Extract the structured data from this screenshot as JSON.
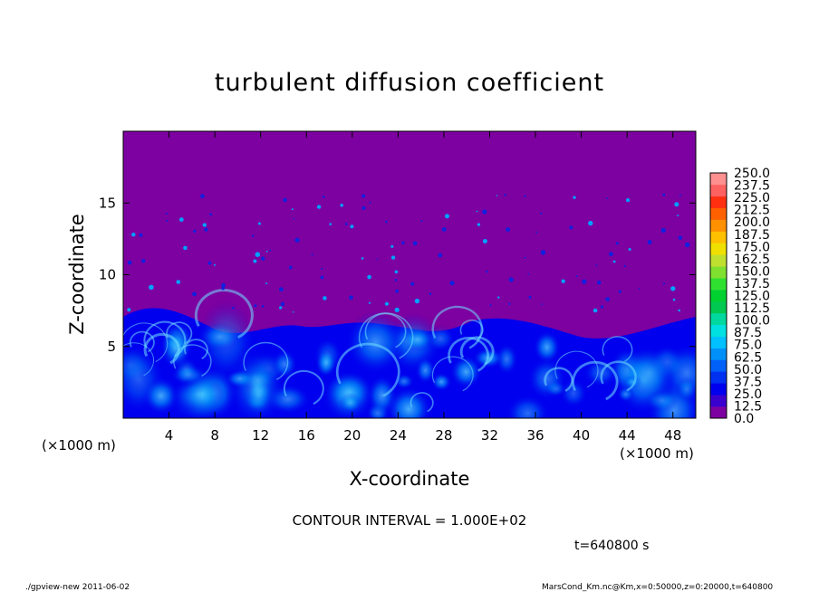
{
  "chart_data": {
    "type": "heatmap",
    "title": "turbulent diffusion coefficient",
    "xlabel": "X-coordinate",
    "ylabel": "Z-coordinate",
    "x_unit_label": "(×1000 m)",
    "z_unit_label": "(×1000 m)",
    "xlim": [
      0,
      50
    ],
    "ylim": [
      0,
      20
    ],
    "x_ticks": [
      "4",
      "8",
      "12",
      "16",
      "20",
      "24",
      "28",
      "32",
      "36",
      "40",
      "44",
      "48"
    ],
    "x_tick_values": [
      4,
      8,
      12,
      16,
      20,
      24,
      28,
      32,
      36,
      40,
      44,
      48
    ],
    "y_ticks": [
      "5",
      "10",
      "15"
    ],
    "y_tick_values": [
      5,
      10,
      15
    ],
    "colorbar": {
      "levels": [
        "0.0",
        "12.5",
        "25.0",
        "37.5",
        "50.0",
        "62.5",
        "75.0",
        "87.5",
        "100.0",
        "112.5",
        "125.0",
        "137.5",
        "150.0",
        "162.5",
        "175.0",
        "187.5",
        "200.0",
        "212.5",
        "225.0",
        "237.5",
        "250.0"
      ],
      "colors": [
        "#7d00a0",
        "#3a00d0",
        "#0000ee",
        "#0030f0",
        "#0060f8",
        "#0090f8",
        "#00c0ff",
        "#00e0e0",
        "#00d8a0",
        "#00c850",
        "#00d030",
        "#30e030",
        "#80e030",
        "#c0e030",
        "#f0e000",
        "#ffc000",
        "#ff9000",
        "#ff6000",
        "#ff3010",
        "#ff6060",
        "#ff9090"
      ]
    },
    "contour_interval": "CONTOUR INTERVAL = 1.000E+02",
    "time": "t=640800 s",
    "background_color": "#7d00a0"
  },
  "footer": {
    "left": "./gpview-new   2011-06-02",
    "right": "MarsCond_Km.nc@Km,x=0:50000,z=0:20000,t=640800"
  }
}
